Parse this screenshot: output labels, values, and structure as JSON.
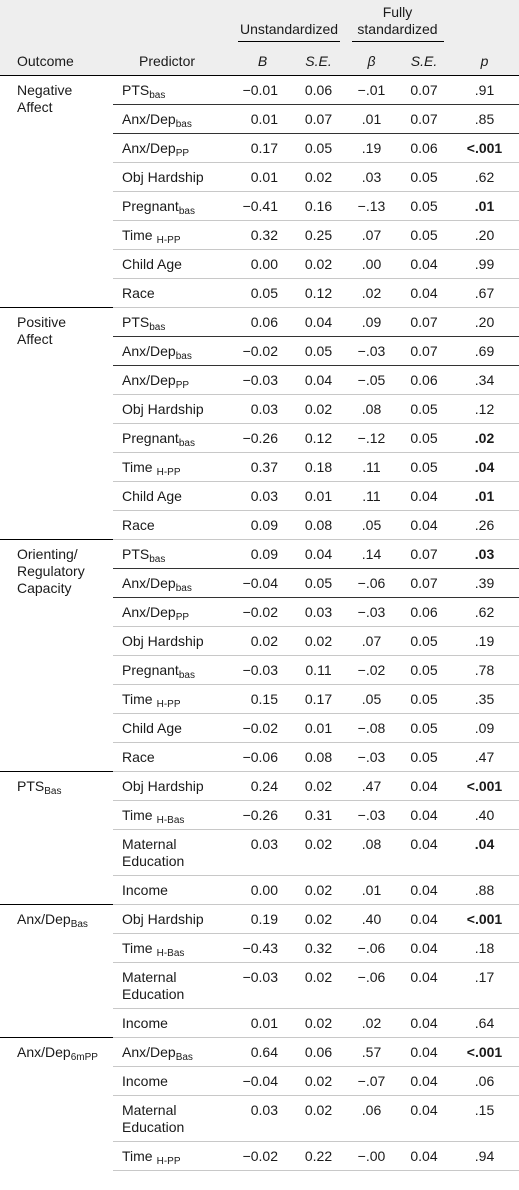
{
  "table": {
    "header": {
      "outcome": "Outcome",
      "predictor": "Predictor",
      "groups": [
        "Unstandardized",
        "Fully standardized"
      ],
      "columns": [
        "B",
        "S.E.",
        "β",
        "S.E.",
        "p"
      ]
    },
    "sections": [
      {
        "outcome": {
          "text": "Negative Affect"
        },
        "rows": [
          {
            "predictor": {
              "text": "PTS",
              "sub": "bas"
            },
            "cells": [
              "−0.01",
              "0.06",
              "−.01",
              "0.07",
              ".91"
            ],
            "p_bold": false
          },
          {
            "predictor": {
              "text": "Anx/Dep",
              "sub": "bas"
            },
            "cells": [
              "0.01",
              "0.07",
              ".01",
              "0.07",
              ".85"
            ],
            "p_bold": false
          },
          {
            "predictor": {
              "text": "Anx/Dep",
              "sub": "PP"
            },
            "cells": [
              "0.17",
              "0.05",
              ".19",
              "0.06",
              "<.001"
            ],
            "p_bold": true
          },
          {
            "predictor": {
              "text": "Obj Hardship"
            },
            "cells": [
              "0.01",
              "0.02",
              ".03",
              "0.05",
              ".62"
            ],
            "p_bold": false
          },
          {
            "predictor": {
              "text": "Pregnant",
              "sub": "bas"
            },
            "cells": [
              "−0.41",
              "0.16",
              "−.13",
              "0.05",
              ".01"
            ],
            "p_bold": true
          },
          {
            "predictor": {
              "text": "Time",
              "sub": "H-PP"
            },
            "cells": [
              "0.32",
              "0.25",
              ".07",
              "0.05",
              ".20"
            ],
            "p_bold": false
          },
          {
            "predictor": {
              "text": "Child Age"
            },
            "cells": [
              "0.00",
              "0.02",
              ".00",
              "0.04",
              ".99"
            ],
            "p_bold": false
          },
          {
            "predictor": {
              "text": "Race"
            },
            "cells": [
              "0.05",
              "0.12",
              ".02",
              "0.04",
              ".67"
            ],
            "p_bold": false
          }
        ]
      },
      {
        "outcome": {
          "text": "Positive Affect"
        },
        "rows": [
          {
            "predictor": {
              "text": "PTS",
              "sub": "bas"
            },
            "cells": [
              "0.06",
              "0.04",
              ".09",
              "0.07",
              ".20"
            ],
            "p_bold": false
          },
          {
            "predictor": {
              "text": "Anx/Dep",
              "sub": "bas"
            },
            "cells": [
              "−0.02",
              "0.05",
              "−.03",
              "0.07",
              ".69"
            ],
            "p_bold": false
          },
          {
            "predictor": {
              "text": "Anx/Dep",
              "sub": "PP"
            },
            "cells": [
              "−0.03",
              "0.04",
              "−.05",
              "0.06",
              ".34"
            ],
            "p_bold": false
          },
          {
            "predictor": {
              "text": "Obj Hardship"
            },
            "cells": [
              "0.03",
              "0.02",
              ".08",
              "0.05",
              ".12"
            ],
            "p_bold": false
          },
          {
            "predictor": {
              "text": "Pregnant",
              "sub": "bas"
            },
            "cells": [
              "−0.26",
              "0.12",
              "−.12",
              "0.05",
              ".02"
            ],
            "p_bold": true
          },
          {
            "predictor": {
              "text": "Time",
              "sub": "H-PP"
            },
            "cells": [
              "0.37",
              "0.18",
              ".11",
              "0.05",
              ".04"
            ],
            "p_bold": true
          },
          {
            "predictor": {
              "text": "Child Age"
            },
            "cells": [
              "0.03",
              "0.01",
              ".11",
              "0.04",
              ".01"
            ],
            "p_bold": true
          },
          {
            "predictor": {
              "text": "Race"
            },
            "cells": [
              "0.09",
              "0.08",
              ".05",
              "0.04",
              ".26"
            ],
            "p_bold": false
          }
        ]
      },
      {
        "outcome": {
          "text": "Orienting/ Regulatory Capacity"
        },
        "rows": [
          {
            "predictor": {
              "text": "PTS",
              "sub": "bas"
            },
            "cells": [
              "0.09",
              "0.04",
              ".14",
              "0.07",
              ".03"
            ],
            "p_bold": true
          },
          {
            "predictor": {
              "text": "Anx/Dep",
              "sub": "bas"
            },
            "cells": [
              "−0.04",
              "0.05",
              "−.06",
              "0.07",
              ".39"
            ],
            "p_bold": false
          },
          {
            "predictor": {
              "text": "Anx/Dep",
              "sub": "PP"
            },
            "cells": [
              "−0.02",
              "0.03",
              "−.03",
              "0.06",
              ".62"
            ],
            "p_bold": false
          },
          {
            "predictor": {
              "text": "Obj Hardship"
            },
            "cells": [
              "0.02",
              "0.02",
              ".07",
              "0.05",
              ".19"
            ],
            "p_bold": false
          },
          {
            "predictor": {
              "text": "Pregnant",
              "sub": "bas"
            },
            "cells": [
              "−0.03",
              "0.11",
              "−.02",
              "0.05",
              ".78"
            ],
            "p_bold": false
          },
          {
            "predictor": {
              "text": "Time",
              "sub": "H-PP"
            },
            "cells": [
              "0.15",
              "0.17",
              ".05",
              "0.05",
              ".35"
            ],
            "p_bold": false
          },
          {
            "predictor": {
              "text": "Child Age"
            },
            "cells": [
              "−0.02",
              "0.01",
              "−.08",
              "0.05",
              ".09"
            ],
            "p_bold": false
          },
          {
            "predictor": {
              "text": "Race"
            },
            "cells": [
              "−0.06",
              "0.08",
              "−.03",
              "0.05",
              ".47"
            ],
            "p_bold": false
          }
        ]
      },
      {
        "outcome": {
          "text": "PTS",
          "sub": "Bas"
        },
        "rows": [
          {
            "predictor": {
              "text": "Obj Hardship"
            },
            "cells": [
              "0.24",
              "0.02",
              ".47",
              "0.04",
              "<.001"
            ],
            "p_bold": true
          },
          {
            "predictor": {
              "text": "Time",
              "sub": "H-Bas"
            },
            "cells": [
              "−0.26",
              "0.31",
              "−.03",
              "0.04",
              ".40"
            ],
            "p_bold": false
          },
          {
            "predictor": {
              "text": "Maternal Education"
            },
            "cells": [
              "0.03",
              "0.02",
              ".08",
              "0.04",
              ".04"
            ],
            "p_bold": true
          },
          {
            "predictor": {
              "text": "Income"
            },
            "cells": [
              "0.00",
              "0.02",
              ".01",
              "0.04",
              ".88"
            ],
            "p_bold": false
          }
        ]
      },
      {
        "outcome": {
          "text": "Anx/Dep",
          "sub": "Bas"
        },
        "rows": [
          {
            "predictor": {
              "text": "Obj Hardship"
            },
            "cells": [
              "0.19",
              "0.02",
              ".40",
              "0.04",
              "<.001"
            ],
            "p_bold": true
          },
          {
            "predictor": {
              "text": "Time",
              "sub": "H-Bas"
            },
            "cells": [
              "−0.43",
              "0.32",
              "−.06",
              "0.04",
              ".18"
            ],
            "p_bold": false
          },
          {
            "predictor": {
              "text": "Maternal Education"
            },
            "cells": [
              "−0.03",
              "0.02",
              "−.06",
              "0.04",
              ".17"
            ],
            "p_bold": false
          },
          {
            "predictor": {
              "text": "Income"
            },
            "cells": [
              "0.01",
              "0.02",
              ".02",
              "0.04",
              ".64"
            ],
            "p_bold": false
          }
        ]
      },
      {
        "outcome": {
          "text": "Anx/Dep",
          "sub": "6mPP"
        },
        "rows": [
          {
            "predictor": {
              "text": "Anx/Dep",
              "sub": "Bas"
            },
            "cells": [
              "0.64",
              "0.06",
              ".57",
              "0.04",
              "<.001"
            ],
            "p_bold": true
          },
          {
            "predictor": {
              "text": "Income"
            },
            "cells": [
              "−0.04",
              "0.02",
              "−.07",
              "0.04",
              ".06"
            ],
            "p_bold": false
          },
          {
            "predictor": {
              "text": "Maternal Education"
            },
            "cells": [
              "0.03",
              "0.02",
              ".06",
              "0.04",
              ".15"
            ],
            "p_bold": false
          },
          {
            "predictor": {
              "text": "Time",
              "sub": "H-PP"
            },
            "cells": [
              "−0.02",
              "0.22",
              "−.00",
              "0.04",
              ".94"
            ],
            "p_bold": false
          }
        ]
      }
    ]
  }
}
